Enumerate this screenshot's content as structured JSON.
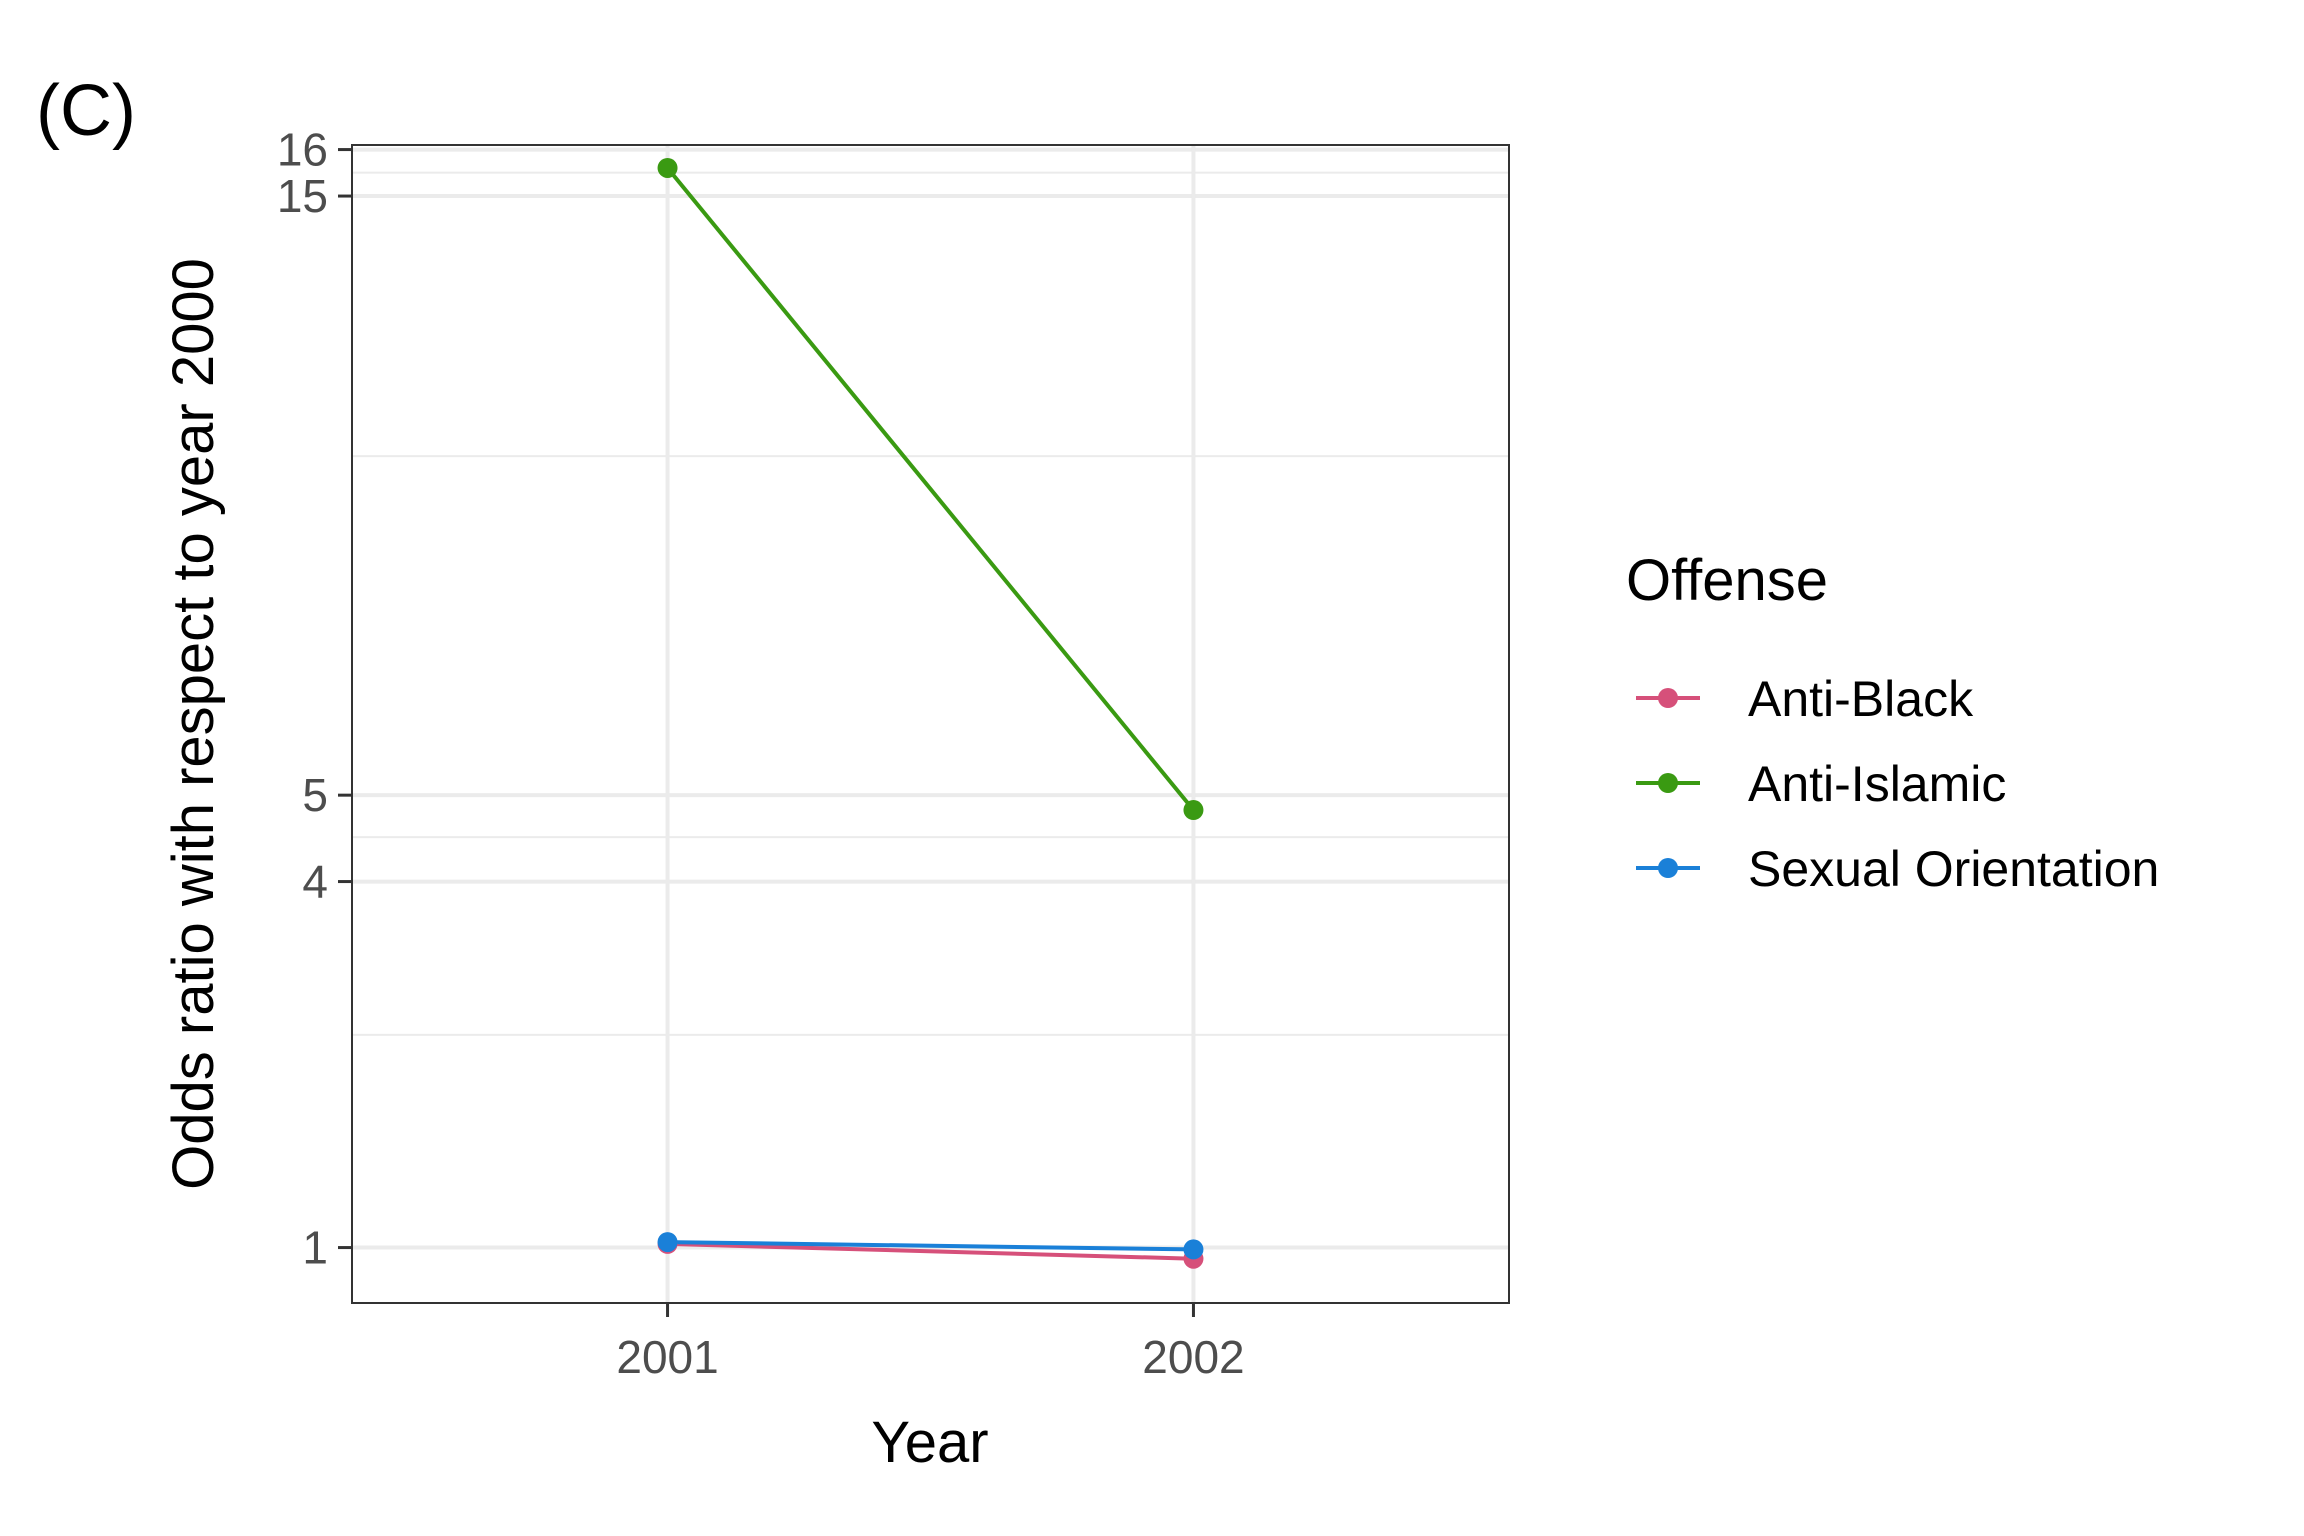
{
  "panel_label": "(C)",
  "chart_data": {
    "type": "line",
    "title": "",
    "xlabel": "Year",
    "ylabel": "Odds ratio with respect to year 2000",
    "y_scale": "sqrt",
    "x": [
      2001,
      2002
    ],
    "x_tick_labels": [
      "2001",
      "2002"
    ],
    "xlim": [
      2000.4,
      2002.6
    ],
    "ylim": [
      0.72,
      16.1
    ],
    "y_ticks": [
      1,
      4,
      5,
      15,
      16
    ],
    "y_tick_labels": [
      "1",
      "4",
      "5",
      "15",
      "16"
    ],
    "y_minor_ticks": [
      2.5,
      4.5,
      10,
      15.5
    ],
    "grid": true,
    "legend_title": "Offense",
    "legend_position": "right",
    "series": [
      {
        "name": "Anti-Black",
        "color": "#d6507a",
        "values": [
          1.02,
          0.94
        ]
      },
      {
        "name": "Anti-Islamic",
        "color": "#3a9a12",
        "values": [
          15.6,
          4.82
        ]
      },
      {
        "name": "Sexual Orientation",
        "color": "#1a80d8",
        "values": [
          1.03,
          0.99
        ]
      }
    ]
  }
}
